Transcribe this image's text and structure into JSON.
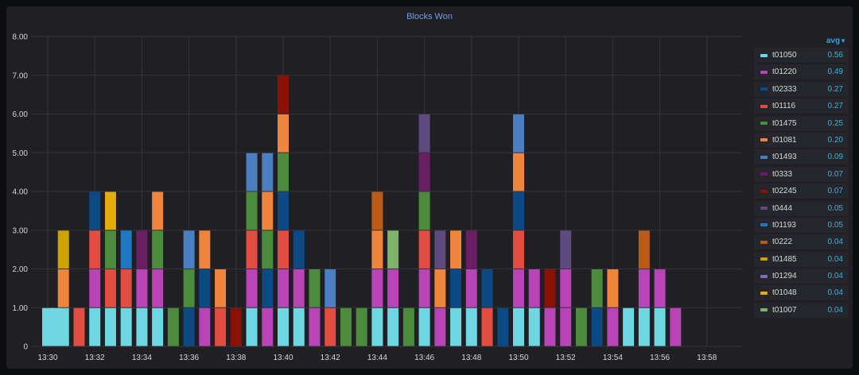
{
  "panel": {
    "title": "Blocks Won"
  },
  "legend": {
    "stat_label": "avg"
  },
  "colors": {
    "t01050": "#6fd7e2",
    "t01220": "#b844b8",
    "t02333": "#0c4a86",
    "t01116": "#e24d42",
    "t01475": "#4b8b3b",
    "t01081": "#ef843c",
    "t01493": "#4a7fc2",
    "t0333": "#6b1f63",
    "t02245": "#8b1006",
    "t0444": "#5e4a7e",
    "t01193": "#1f78c1",
    "t0222": "#ba5b18",
    "t01485": "#cca300",
    "t01294": "#806eb7",
    "t01048": "#e5ac0e",
    "t01007": "#7eb26d"
  },
  "chart_data": {
    "type": "bar",
    "stacked": true,
    "title": "Blocks Won",
    "ylim": [
      0,
      8
    ],
    "yticks": [
      "0",
      "1.00",
      "2.00",
      "3.00",
      "4.00",
      "5.00",
      "6.00",
      "7.00",
      "8.00"
    ],
    "xticks": [
      "13:30",
      "13:32",
      "13:34",
      "13:36",
      "13:38",
      "13:40",
      "13:42",
      "13:44",
      "13:46",
      "13:48",
      "13:50",
      "13:52",
      "13:54",
      "13:56",
      "13:58"
    ],
    "grid": true,
    "legend_position": "right",
    "series": [
      {
        "name": "t01050",
        "avg": "0.56"
      },
      {
        "name": "t01220",
        "avg": "0.49"
      },
      {
        "name": "t02333",
        "avg": "0.27"
      },
      {
        "name": "t01116",
        "avg": "0.27"
      },
      {
        "name": "t01475",
        "avg": "0.25"
      },
      {
        "name": "t01081",
        "avg": "0.20"
      },
      {
        "name": "t01493",
        "avg": "0.09"
      },
      {
        "name": "t0333",
        "avg": "0.07"
      },
      {
        "name": "t02245",
        "avg": "0.07"
      },
      {
        "name": "t0444",
        "avg": "0.05"
      },
      {
        "name": "t01193",
        "avg": "0.05"
      },
      {
        "name": "t0222",
        "avg": "0.04"
      },
      {
        "name": "t01485",
        "avg": "0.04"
      },
      {
        "name": "t01294",
        "avg": "0.04"
      },
      {
        "name": "t01048",
        "avg": "0.04"
      },
      {
        "name": "t01007",
        "avg": "0.04"
      }
    ],
    "bars": [
      {
        "x": "13:30:00",
        "stack": [
          "t01050"
        ]
      },
      {
        "x": "13:30:20",
        "stack": [
          "t01050"
        ]
      },
      {
        "x": "13:30:40",
        "stack": [
          "t01050",
          "t01081",
          "t01485"
        ]
      },
      {
        "x": "13:31:20",
        "stack": [
          "t01116"
        ]
      },
      {
        "x": "13:32:00",
        "stack": [
          "t01050",
          "t01220",
          "t01116",
          "t02333"
        ]
      },
      {
        "x": "13:32:40",
        "stack": [
          "t01050",
          "t01116",
          "t01475",
          "t01048"
        ]
      },
      {
        "x": "13:33:20",
        "stack": [
          "t01050",
          "t01116",
          "t01193"
        ]
      },
      {
        "x": "13:34:00",
        "stack": [
          "t01050",
          "t01220",
          "t0333"
        ]
      },
      {
        "x": "13:34:40",
        "stack": [
          "t01050",
          "t01220",
          "t01475",
          "t01081"
        ]
      },
      {
        "x": "13:35:20",
        "stack": [
          "t01475"
        ]
      },
      {
        "x": "13:36:00",
        "stack": [
          "t02333",
          "t01475",
          "t01493"
        ]
      },
      {
        "x": "13:36:40",
        "stack": [
          "t01220",
          "t02333",
          "t01081"
        ]
      },
      {
        "x": "13:37:20",
        "stack": [
          "t01116",
          "t01081"
        ]
      },
      {
        "x": "13:38:00",
        "stack": [
          "t02245"
        ]
      },
      {
        "x": "13:38:40",
        "stack": [
          "t01050",
          "t01220",
          "t01116",
          "t01475",
          "t01493"
        ]
      },
      {
        "x": "13:39:20",
        "stack": [
          "t01220",
          "t02333",
          "t01475",
          "t01081",
          "t01493"
        ]
      },
      {
        "x": "13:40:00",
        "stack": [
          "t01050",
          "t01220",
          "t01116",
          "t02333",
          "t01475",
          "t01081",
          "t02245"
        ]
      },
      {
        "x": "13:40:40",
        "stack": [
          "t01050",
          "t01220",
          "t02333"
        ]
      },
      {
        "x": "13:41:20",
        "stack": [
          "t01220",
          "t01475"
        ]
      },
      {
        "x": "13:42:00",
        "stack": [
          "t01116",
          "t01493"
        ]
      },
      {
        "x": "13:42:40",
        "stack": [
          "t01475"
        ]
      },
      {
        "x": "13:43:20",
        "stack": [
          "t01475"
        ]
      },
      {
        "x": "13:44:00",
        "stack": [
          "t01050",
          "t01220",
          "t01081",
          "t0222"
        ]
      },
      {
        "x": "13:44:40",
        "stack": [
          "t01050",
          "t01220",
          "t01007"
        ]
      },
      {
        "x": "13:45:20",
        "stack": [
          "t01475"
        ]
      },
      {
        "x": "13:46:00",
        "stack": [
          "t01050",
          "t01220",
          "t01116",
          "t01475",
          "t0333",
          "t0444"
        ]
      },
      {
        "x": "13:46:40",
        "stack": [
          "t01220",
          "t01081",
          "t0444"
        ]
      },
      {
        "x": "13:47:20",
        "stack": [
          "t01050",
          "t02333",
          "t01081"
        ]
      },
      {
        "x": "13:48:00",
        "stack": [
          "t01050",
          "t01220",
          "t0333"
        ]
      },
      {
        "x": "13:48:40",
        "stack": [
          "t01116",
          "t02333"
        ]
      },
      {
        "x": "13:49:20",
        "stack": [
          "t02333"
        ]
      },
      {
        "x": "13:50:00",
        "stack": [
          "t01050",
          "t01220",
          "t01116",
          "t02333",
          "t01081",
          "t01493"
        ]
      },
      {
        "x": "13:50:40",
        "stack": [
          "t01050",
          "t01220"
        ]
      },
      {
        "x": "13:51:20",
        "stack": [
          "t01220",
          "t02245"
        ]
      },
      {
        "x": "13:52:00",
        "stack": [
          "t01220",
          "t01220",
          "t0444"
        ]
      },
      {
        "x": "13:52:40",
        "stack": [
          "t01475"
        ]
      },
      {
        "x": "13:53:20",
        "stack": [
          "t02333",
          "t01475"
        ]
      },
      {
        "x": "13:54:00",
        "stack": [
          "t01220",
          "t01081"
        ]
      },
      {
        "x": "13:54:40",
        "stack": [
          "t01050"
        ]
      },
      {
        "x": "13:55:20",
        "stack": [
          "t01050",
          "t01220",
          "t0222"
        ]
      },
      {
        "x": "13:56:00",
        "stack": [
          "t01050",
          "t01220"
        ]
      },
      {
        "x": "13:56:40",
        "stack": [
          "t01220"
        ]
      }
    ]
  }
}
